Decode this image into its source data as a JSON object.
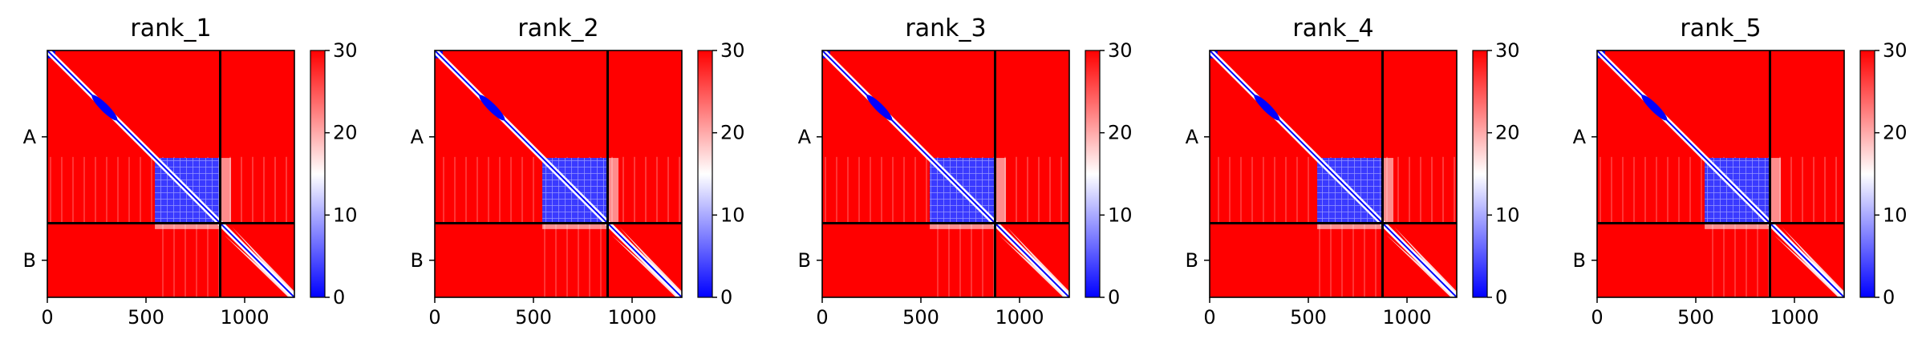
{
  "chart_data": [
    {
      "type": "heatmap",
      "title": "rank_1",
      "chains": [
        "A",
        "B"
      ],
      "boundary": 876,
      "x_ticks": [
        "0",
        "500",
        "1000"
      ],
      "x_range": [
        0,
        1252
      ],
      "colorbar": {
        "ticks": [
          "0",
          "10",
          "20",
          "30"
        ],
        "range": [
          0,
          30
        ],
        "colormap": "bwr"
      }
    },
    {
      "type": "heatmap",
      "title": "rank_2",
      "chains": [
        "A",
        "B"
      ],
      "boundary": 876,
      "x_ticks": [
        "0",
        "500",
        "1000"
      ],
      "x_range": [
        0,
        1252
      ],
      "colorbar": {
        "ticks": [
          "0",
          "10",
          "20",
          "30"
        ],
        "range": [
          0,
          30
        ],
        "colormap": "bwr"
      }
    },
    {
      "type": "heatmap",
      "title": "rank_3",
      "chains": [
        "A",
        "B"
      ],
      "boundary": 876,
      "x_ticks": [
        "0",
        "500",
        "1000"
      ],
      "x_range": [
        0,
        1252
      ],
      "colorbar": {
        "ticks": [
          "0",
          "10",
          "20",
          "30"
        ],
        "range": [
          0,
          30
        ],
        "colormap": "bwr"
      }
    },
    {
      "type": "heatmap",
      "title": "rank_4",
      "chains": [
        "A",
        "B"
      ],
      "boundary": 876,
      "x_ticks": [
        "0",
        "500",
        "1000"
      ],
      "x_range": [
        0,
        1252
      ],
      "colorbar": {
        "ticks": [
          "0",
          "10",
          "20",
          "30"
        ],
        "range": [
          0,
          30
        ],
        "colormap": "bwr"
      }
    },
    {
      "type": "heatmap",
      "title": "rank_5",
      "chains": [
        "A",
        "B"
      ],
      "boundary": 876,
      "x_ticks": [
        "0",
        "500",
        "1000"
      ],
      "x_range": [
        0,
        1252
      ],
      "colorbar": {
        "ticks": [
          "0",
          "10",
          "20",
          "30"
        ],
        "range": [
          0,
          30
        ],
        "colormap": "bwr"
      }
    }
  ],
  "colors": {
    "high": "#ff0000",
    "mid": "#ffffff",
    "low": "#0000ff",
    "divider": "#000000"
  }
}
